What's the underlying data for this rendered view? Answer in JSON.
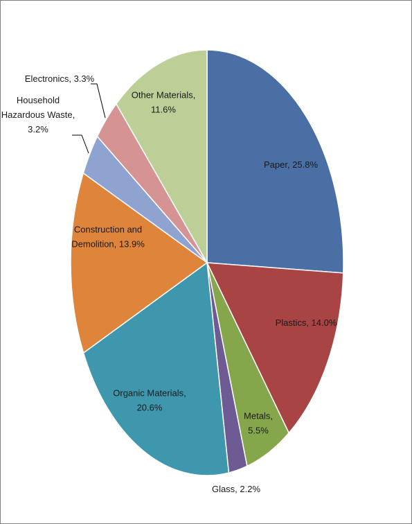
{
  "chart_data": {
    "type": "pie",
    "title": "",
    "slices": [
      {
        "name": "Paper",
        "value": 25.8,
        "label": [
          "Paper, 25.8%"
        ],
        "color": "#4a6fa5"
      },
      {
        "name": "Plastics",
        "value": 14.0,
        "label": [
          "Plastics, 14.0%"
        ],
        "color": "#a84444"
      },
      {
        "name": "Metals",
        "value": 5.5,
        "label": [
          "Metals,",
          "5.5%"
        ],
        "color": "#86a64c"
      },
      {
        "name": "Glass",
        "value": 2.2,
        "label": [
          "Glass, 2.2%"
        ],
        "color": "#6f5b93"
      },
      {
        "name": "Organic Materials",
        "value": 20.6,
        "label": [
          "Organic Materials,",
          "20.6%"
        ],
        "color": "#3e97ad"
      },
      {
        "name": "Construction and Demolition",
        "value": 13.9,
        "label": [
          "Construction and",
          "Demolition, 13.9%"
        ],
        "color": "#de843b"
      },
      {
        "name": "Household Hazardous Waste",
        "value": 3.2,
        "label": [
          "Household",
          "Hazardous Waste,",
          "3.2%"
        ],
        "color": "#8ea3d0"
      },
      {
        "name": "Electronics",
        "value": 3.3,
        "label": [
          "Electronics, 3.3%"
        ],
        "color": "#d69393"
      },
      {
        "name": "Other Materials",
        "value": 11.6,
        "label": [
          "Other Materials,",
          "11.6%"
        ],
        "color": "#bccf97"
      }
    ],
    "start_angle": "12 o'clock, clockwise",
    "legend": "none"
  }
}
